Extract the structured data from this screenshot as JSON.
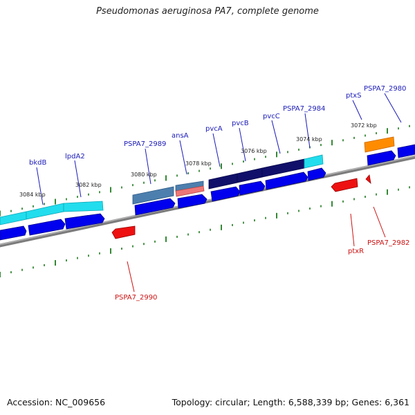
{
  "header": {
    "title": "Pseudomonas aeruginosa PA7, complete genome"
  },
  "footer": {
    "accession": "Accession: NC_009656",
    "topology": "Topology: circular; Length: 6,588,339 bp; Genes: 6,361"
  },
  "scale_labels": [
    "3084 kbp",
    "3082 kbp",
    "3080 kbp",
    "3078 kbp",
    "3076 kbp",
    "3074 kbp",
    "3072 kbp"
  ],
  "gene_labels_top": [
    "bkdB",
    "lpdA2",
    "PSPA7_2989",
    "ansA",
    "pvcA",
    "pvcB",
    "pvcC",
    "PSPA7_2984",
    "ptxS",
    "PSPA7_2980"
  ],
  "gene_labels_bottom": [
    "PSPA7_2990",
    "ptxR",
    "PSPA7_2982"
  ],
  "colors": {
    "backbone": "#8a8a8a",
    "cds_forward": "#0000ee",
    "cds_reverse": "#ee1111",
    "tick": "#1e7a1e",
    "label_forward": "#1a1ab8",
    "label_reverse": "#cc1111",
    "highlight_cyan": "#22dded",
    "highlight_navy": "#10106a",
    "highlight_steel": "#4d7fae",
    "highlight_salmon": "#ee7777",
    "highlight_orange": "#ff8c00"
  }
}
